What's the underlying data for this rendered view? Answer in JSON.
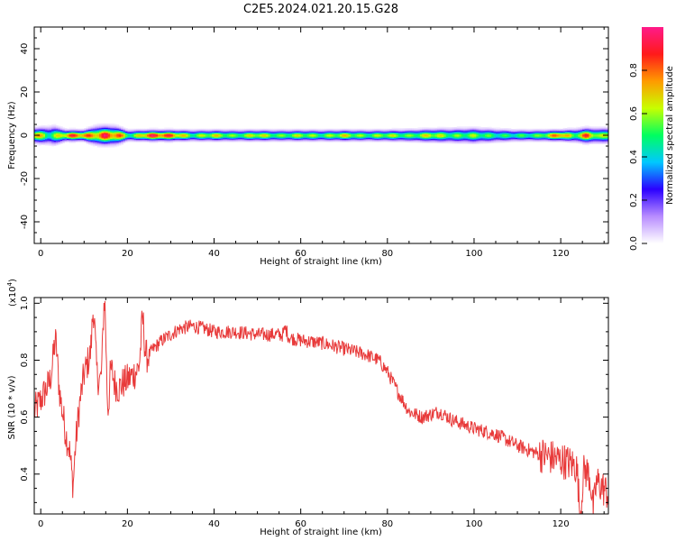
{
  "title": "C2E5.2024.021.20.15.G28",
  "chart_data": [
    {
      "type": "heatmap",
      "xlabel": "Height of straight line (km)",
      "ylabel": "Frequency (Hz)",
      "xlim": [
        -1.5,
        131
      ],
      "ylim": [
        -50,
        50
      ],
      "xticks": [
        0,
        20,
        40,
        60,
        80,
        100,
        120
      ],
      "yticks": [
        40,
        20,
        0,
        -20,
        -40
      ],
      "band_center_hz": 0,
      "band_halfwidth_hz": [
        [
          -1,
          4
        ],
        [
          3,
          5
        ],
        [
          6,
          3
        ],
        [
          10,
          3
        ],
        [
          13,
          5
        ],
        [
          17,
          5
        ],
        [
          20,
          3
        ],
        [
          25,
          3
        ],
        [
          40,
          3
        ],
        [
          60,
          3
        ],
        [
          80,
          3
        ],
        [
          100,
          4
        ],
        [
          110,
          3
        ],
        [
          120,
          3
        ],
        [
          126,
          4
        ],
        [
          131,
          4
        ]
      ],
      "peak_amplitude_segments": [
        [
          -1,
          0.85
        ],
        [
          2,
          0.55
        ],
        [
          4,
          0.7
        ],
        [
          7,
          0.95
        ],
        [
          10,
          0.9
        ],
        [
          12,
          0.85
        ],
        [
          15,
          1.0
        ],
        [
          18,
          0.9
        ],
        [
          21,
          0.55
        ],
        [
          25,
          1.0
        ],
        [
          30,
          0.95
        ],
        [
          35,
          0.6
        ],
        [
          40,
          0.75
        ],
        [
          45,
          0.6
        ],
        [
          50,
          0.75
        ],
        [
          55,
          0.6
        ],
        [
          60,
          0.7
        ],
        [
          65,
          0.6
        ],
        [
          70,
          0.75
        ],
        [
          75,
          0.6
        ],
        [
          80,
          0.7
        ],
        [
          85,
          0.6
        ],
        [
          90,
          0.75
        ],
        [
          95,
          0.6
        ],
        [
          100,
          0.65
        ],
        [
          105,
          0.55
        ],
        [
          110,
          0.55
        ],
        [
          115,
          0.6
        ],
        [
          120,
          0.95
        ],
        [
          123,
          0.6
        ],
        [
          126,
          0.95
        ],
        [
          129,
          0.6
        ],
        [
          131,
          0.8
        ]
      ],
      "colorbar": {
        "label": "Normalized spectral amplitude",
        "range": [
          0,
          1
        ],
        "ticks": [
          "0.0",
          "0.2",
          "0.4",
          "0.6",
          "0.8"
        ],
        "tick_values": [
          0.0,
          0.2,
          0.4,
          0.6,
          0.8
        ],
        "colors": [
          "#ffffff",
          "#b88cff",
          "#2b00ff",
          "#00c8ff",
          "#00ff60",
          "#c8ff00",
          "#ff9a00",
          "#ff1a1a",
          "#ff1a8a"
        ]
      }
    },
    {
      "type": "line",
      "xlabel": "Height of straight line (km)",
      "ylabel": "SNR (10 * v/v)",
      "multiplier": "(x10",
      "multiplier_exp": "4",
      "multiplier_close": ")",
      "xlim": [
        -1.5,
        131
      ],
      "ylim": [
        0.26,
        1.02
      ],
      "xticks": [
        0,
        20,
        40,
        60,
        80,
        100,
        120
      ],
      "yticks": [
        "0.4",
        "0.6",
        "0.8",
        "1.0"
      ],
      "ytick_values": [
        0.4,
        0.6,
        0.8,
        1.0
      ],
      "color": "#e83a3a",
      "trend": {
        "x": [
          -1.5,
          0,
          2,
          3,
          4,
          5,
          6,
          7,
          7.5,
          8,
          9,
          10,
          11,
          12,
          13,
          14,
          15,
          16,
          17,
          18,
          19,
          20,
          22,
          24,
          26,
          28,
          30,
          32,
          35,
          38,
          40,
          45,
          50,
          55,
          57,
          60,
          65,
          70,
          75,
          78,
          80,
          82,
          85,
          88,
          90,
          92,
          95,
          100,
          105,
          110,
          115,
          120,
          125,
          128,
          131
        ],
        "y": [
          0.62,
          0.66,
          0.72,
          0.8,
          0.72,
          0.62,
          0.52,
          0.45,
          0.4,
          0.5,
          0.65,
          0.75,
          0.8,
          0.82,
          0.74,
          0.72,
          0.78,
          0.8,
          0.72,
          0.7,
          0.72,
          0.73,
          0.76,
          0.8,
          0.84,
          0.87,
          0.89,
          0.91,
          0.92,
          0.91,
          0.9,
          0.9,
          0.89,
          0.89,
          0.88,
          0.87,
          0.86,
          0.84,
          0.82,
          0.8,
          0.76,
          0.7,
          0.62,
          0.6,
          0.61,
          0.62,
          0.59,
          0.56,
          0.54,
          0.5,
          0.47,
          0.45,
          0.42,
          0.38,
          0.33
        ]
      },
      "spikes": [
        {
          "x": 3.5,
          "y": 0.86
        },
        {
          "x": 6.5,
          "y": 0.5
        },
        {
          "x": 7.3,
          "y": 0.38
        },
        {
          "x": 12.2,
          "y": 0.97
        },
        {
          "x": 14.7,
          "y": 1.02
        },
        {
          "x": 15.5,
          "y": 0.62
        },
        {
          "x": 23.5,
          "y": 0.94
        },
        {
          "x": 56.5,
          "y": 0.91
        },
        {
          "x": 124.5,
          "y": 0.26
        },
        {
          "x": 127.5,
          "y": 0.28
        }
      ],
      "noise_amplitude": 0.025
    }
  ]
}
